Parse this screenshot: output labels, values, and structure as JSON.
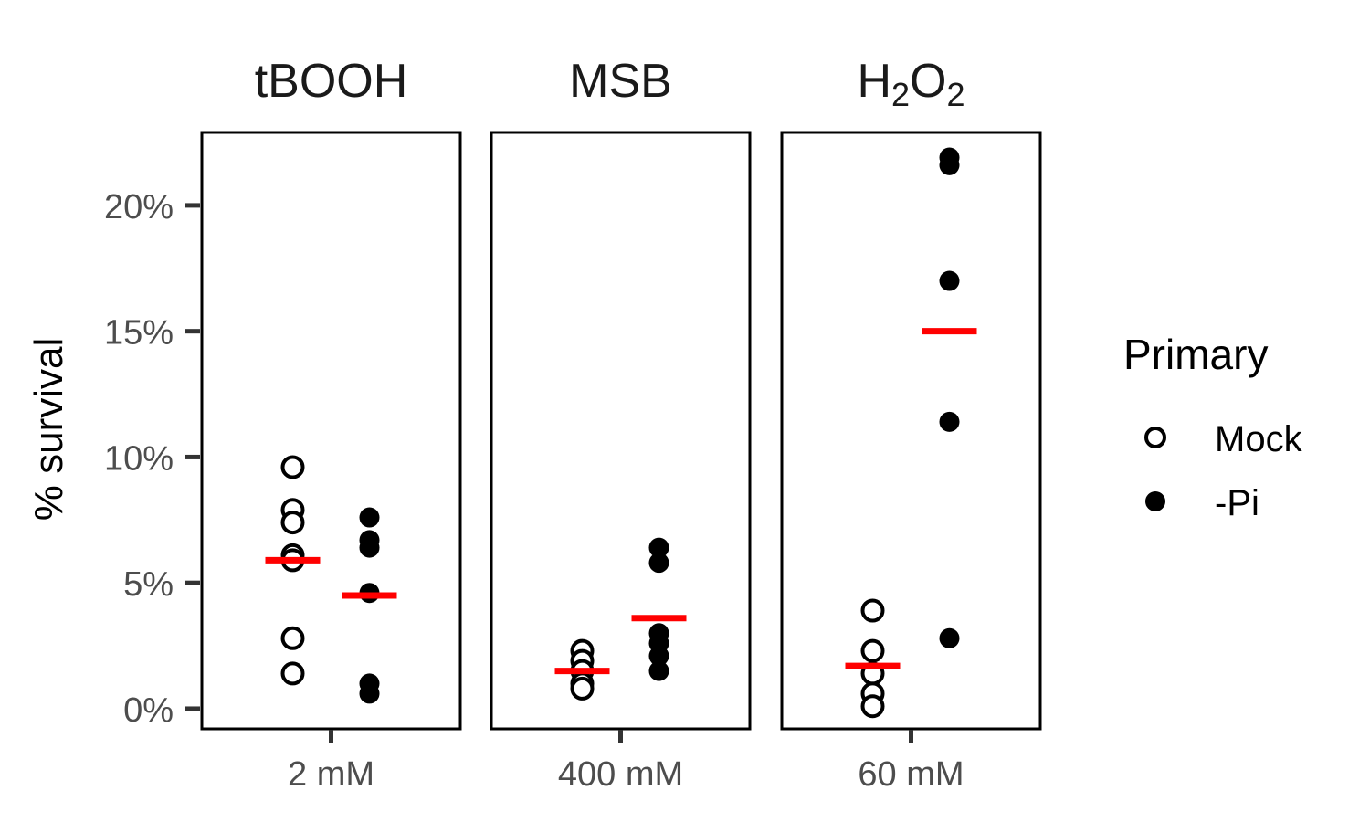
{
  "chart_data": {
    "type": "scatter",
    "ylabel": "% survival",
    "ylim": [
      -0.8,
      22.9
    ],
    "y_ticks": [
      0,
      5,
      10,
      15,
      20
    ],
    "y_tick_labels": [
      "0%",
      "5%",
      "10%",
      "15%",
      "20%"
    ],
    "legend": {
      "title": "Primary",
      "position": "right",
      "entries": [
        {
          "label": "Mock",
          "style": "open-circle"
        },
        {
          "label": "-Pi",
          "style": "filled-circle"
        }
      ]
    },
    "colors": {
      "points": "#000000",
      "mean": "#ff0000"
    },
    "grid": false,
    "facets": [
      {
        "title": "tBOOH",
        "title_sub": "",
        "title_after": "",
        "x_label": "2 mM",
        "series": [
          {
            "name": "Mock",
            "values": [
              9.6,
              7.9,
              7.4,
              6.1,
              5.9,
              2.8,
              1.4
            ],
            "mean": 5.9
          },
          {
            "name": "-Pi",
            "values": [
              7.6,
              6.7,
              6.4,
              4.6,
              1.0,
              0.6
            ],
            "mean": 4.5
          }
        ]
      },
      {
        "title": "MSB",
        "title_sub": "",
        "title_after": "",
        "x_label": "400 mM",
        "series": [
          {
            "name": "Mock",
            "values": [
              2.3,
              1.9,
              1.5,
              1.0,
              0.8
            ],
            "mean": 1.5
          },
          {
            "name": "-Pi",
            "values": [
              6.4,
              5.8,
              3.0,
              2.6,
              2.1,
              1.5
            ],
            "mean": 3.6
          }
        ]
      },
      {
        "title": "H",
        "title_sub": "2",
        "title_after": "O",
        "title_sub2": "2",
        "x_label": "60 mM",
        "series": [
          {
            "name": "Mock",
            "values": [
              3.9,
              2.3,
              1.4,
              0.6,
              0.1
            ],
            "mean": 1.7
          },
          {
            "name": "-Pi",
            "values": [
              21.9,
              21.6,
              17.0,
              11.4,
              2.8
            ],
            "mean": 15.0
          }
        ]
      }
    ]
  }
}
